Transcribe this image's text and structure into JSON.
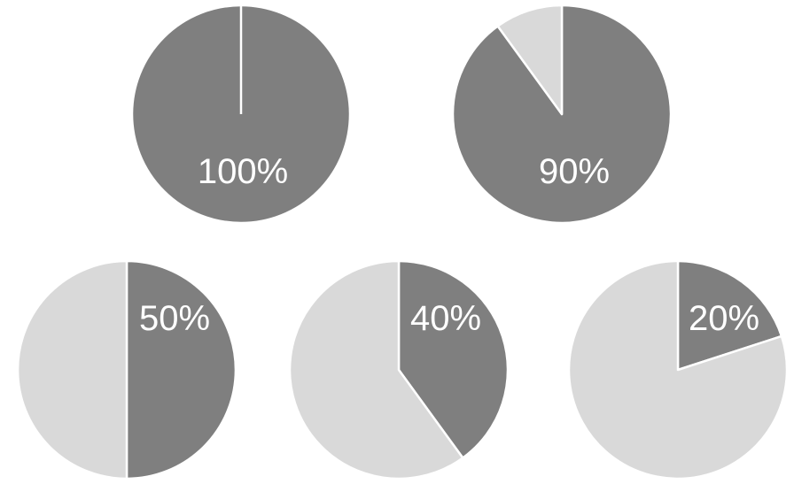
{
  "chart_data": [
    {
      "type": "pie",
      "label": "100%",
      "slices": [
        {
          "value": 100,
          "color": "#7f7f7f"
        },
        {
          "value": 0,
          "color": "#d9d9d9"
        }
      ]
    },
    {
      "type": "pie",
      "label": "90%",
      "slices": [
        {
          "value": 90,
          "color": "#7f7f7f"
        },
        {
          "value": 10,
          "color": "#d9d9d9"
        }
      ]
    },
    {
      "type": "pie",
      "label": "50%",
      "slices": [
        {
          "value": 50,
          "color": "#7f7f7f"
        },
        {
          "value": 50,
          "color": "#d9d9d9"
        }
      ]
    },
    {
      "type": "pie",
      "label": "40%",
      "slices": [
        {
          "value": 40,
          "color": "#7f7f7f"
        },
        {
          "value": 60,
          "color": "#d9d9d9"
        }
      ]
    },
    {
      "type": "pie",
      "label": "20%",
      "slices": [
        {
          "value": 20,
          "color": "#7f7f7f"
        },
        {
          "value": 80,
          "color": "#d9d9d9"
        }
      ]
    }
  ]
}
